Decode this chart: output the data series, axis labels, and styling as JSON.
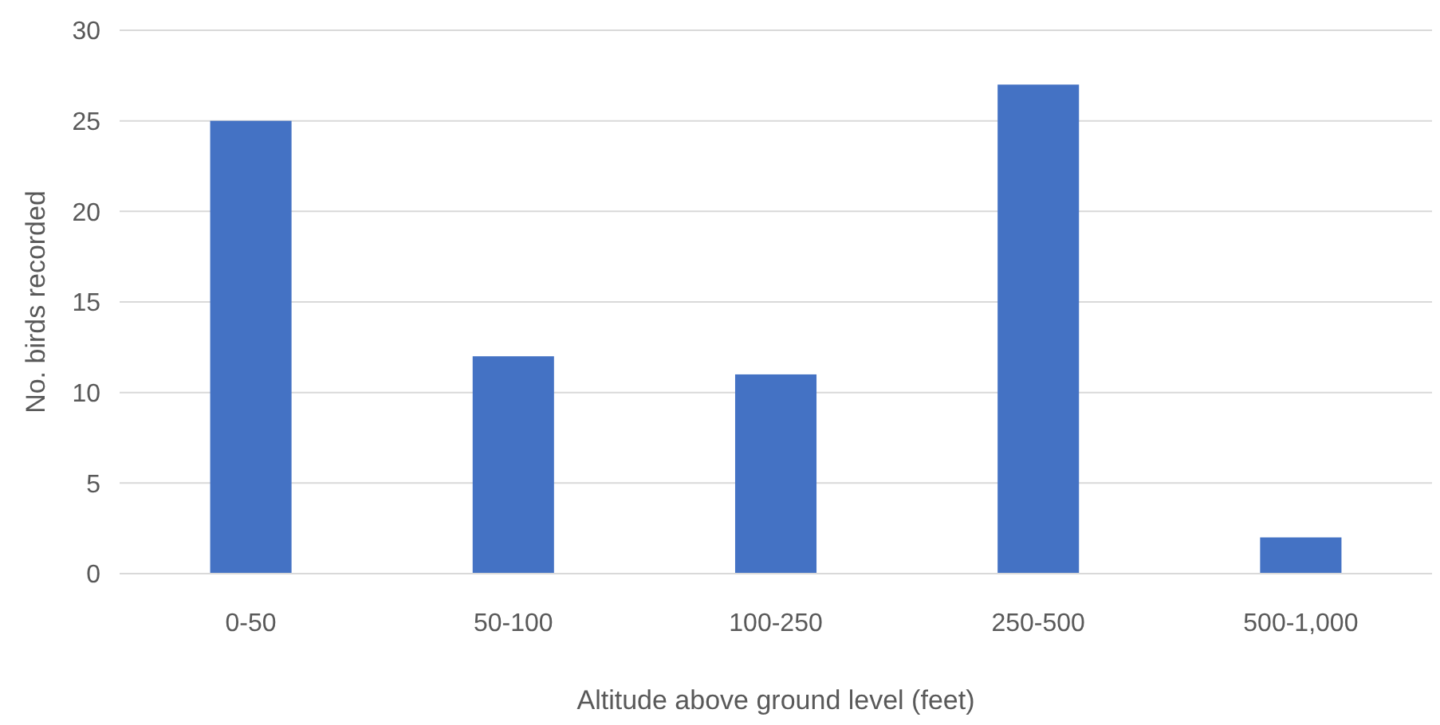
{
  "chart_data": {
    "type": "bar",
    "xlabel": "Altitude above ground level (feet)",
    "ylabel": "No. birds recorded",
    "categories": [
      "0-50",
      "50-100",
      "100-250",
      "250-500",
      "500-1,000"
    ],
    "values": [
      25,
      12,
      11,
      27,
      2
    ],
    "color": "#4472c4",
    "ylim": [
      0,
      30
    ],
    "yticks": [
      0,
      5,
      10,
      15,
      20,
      25,
      30
    ],
    "grid": "y"
  }
}
